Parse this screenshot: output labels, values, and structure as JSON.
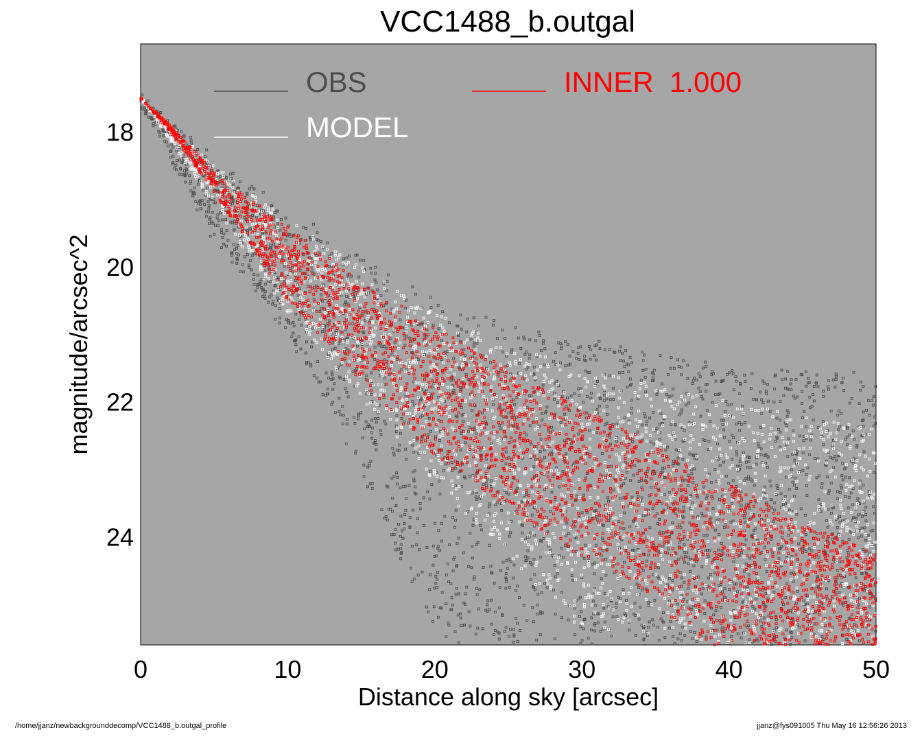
{
  "footer": {
    "left": "/home/jjanz/newbackgrounddecomp/VCC1488_b.outgal_profile",
    "right": "jjanz@fys091005  Thu May 16 12:56:26 2013"
  },
  "chart_data": {
    "type": "scatter",
    "title": "VCC1488_b.outgal",
    "xlabel": "Distance along sky [arcsec]",
    "ylabel": "magnitude/arcsec^2",
    "xlim": [
      0,
      50
    ],
    "ylim": [
      25.6,
      16.7
    ],
    "y_inverted": true,
    "x_ticks": [
      0,
      10,
      20,
      30,
      40,
      50
    ],
    "y_ticks": [
      18,
      20,
      22,
      24
    ],
    "grid": false,
    "plot_background": "#a6a6a6",
    "legend_placement": "top-left",
    "legend": [
      {
        "label": "OBS",
        "color": "#4d4d4d"
      },
      {
        "label": "MODEL",
        "color": "#ffffff"
      },
      {
        "label": "INNER  1.000",
        "color": "#ff0000"
      }
    ],
    "series": [
      {
        "name": "INNER  1.000",
        "color": "#ff0000",
        "band_upper_x": [
          0,
          2,
          5,
          10,
          15,
          20,
          25,
          30,
          35,
          40,
          45,
          50
        ],
        "band_upper_y": [
          17.5,
          17.9,
          18.6,
          19.4,
          20.2,
          20.9,
          21.5,
          22.1,
          22.6,
          23.2,
          23.8,
          24.2
        ],
        "band_lower_x": [
          0,
          2,
          5,
          10,
          15,
          20,
          25,
          30,
          35,
          38.5
        ],
        "band_lower_y": [
          17.5,
          18.0,
          18.9,
          20.5,
          21.7,
          22.8,
          23.6,
          24.3,
          25.0,
          25.6
        ]
      },
      {
        "name": "MODEL",
        "color": "#ffffff",
        "band_upper_x": [
          0,
          5,
          10,
          20,
          30,
          40,
          50
        ],
        "band_upper_y": [
          17.5,
          18.5,
          19.3,
          20.7,
          21.5,
          22.0,
          22.4
        ],
        "band_lower_x": [
          0,
          5,
          10,
          20,
          30,
          40,
          50
        ],
        "band_lower_y": [
          17.5,
          19.1,
          20.7,
          23.2,
          25.4,
          25.6,
          25.6
        ]
      },
      {
        "name": "OBS",
        "color": "#4d4d4d",
        "band_upper_x": [
          0,
          5,
          10,
          20,
          30,
          40,
          50
        ],
        "band_upper_y": [
          17.5,
          18.4,
          19.2,
          20.5,
          21.1,
          21.5,
          21.6
        ],
        "band_lower_x": [
          0,
          5,
          10,
          15,
          20,
          30,
          40,
          50
        ],
        "band_lower_y": [
          17.6,
          19.6,
          21.0,
          23.0,
          25.6,
          25.6,
          25.6,
          25.6
        ]
      }
    ]
  }
}
